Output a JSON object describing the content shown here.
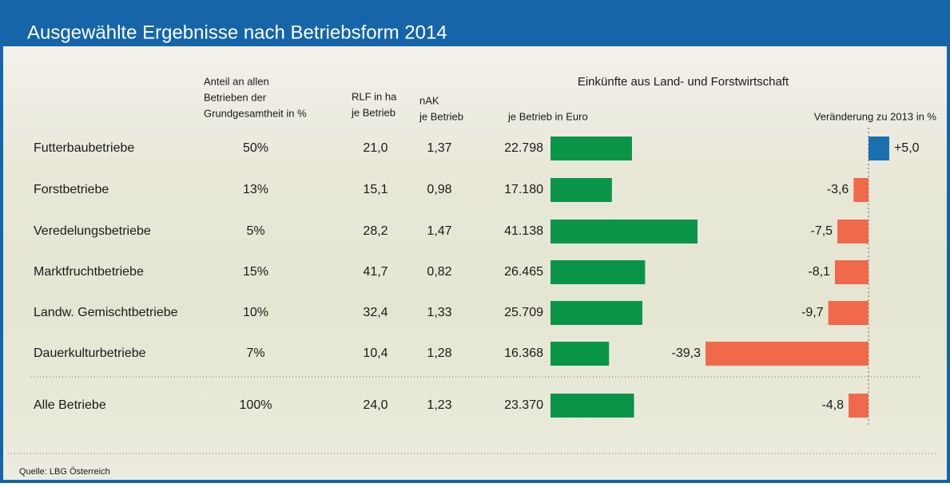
{
  "title": "Ausgewählte Ergebnisse nach Betriebsform 2014",
  "source": "Quelle: LBG Österreich",
  "table": {
    "headers": [
      [
        "Anteil an allen",
        "Betrieben der",
        "Grundgesamtheit in %"
      ],
      [
        "RLF in ha",
        "je Betrieb"
      ],
      [
        "nAK",
        "je Betrieb"
      ]
    ],
    "rows": [
      [
        "50%",
        "21,0",
        "1,37"
      ],
      [
        "13%",
        "15,1",
        "0,98"
      ],
      [
        "5%",
        "28,2",
        "1,47"
      ],
      [
        "15%",
        "41,7",
        "0,82"
      ],
      [
        "10%",
        "32,4",
        "1,33"
      ],
      [
        "7%",
        "10,4",
        "1,28"
      ],
      [
        "100%",
        "24,0",
        "1,23"
      ]
    ]
  },
  "chart_data": [
    {
      "type": "bar",
      "title": "Einkünfte aus Land- und Forstwirtschaft",
      "subtitle": "je Betrieb in Euro",
      "categories": [
        "Futterbaubetriebe",
        "Forstbetriebe",
        "Veredelungsbetriebe",
        "Marktfruchtbetriebe",
        "Landw. Gemischtbetriebe",
        "Dauerkulturbetriebe",
        "Alle Betriebe"
      ],
      "values": [
        22798,
        17180,
        41138,
        26465,
        25709,
        16368,
        23370
      ],
      "value_labels": [
        "22.798",
        "17.180",
        "41.138",
        "26.465",
        "25.709",
        "16.368",
        "23.370"
      ],
      "color": "#0a9447"
    },
    {
      "type": "diverging-bar",
      "title": "Veränderung zu 2013 in %",
      "values": [
        5.0,
        -3.6,
        -7.5,
        -8.1,
        -9.7,
        -39.3,
        -4.8
      ],
      "value_labels": [
        "+5,0",
        "-3,6",
        "-7,5",
        "-8,1",
        "-9,7",
        "-39,3",
        "-4,8"
      ],
      "positive_color": "#1a6faf",
      "negative_color": "#f0694a"
    }
  ]
}
